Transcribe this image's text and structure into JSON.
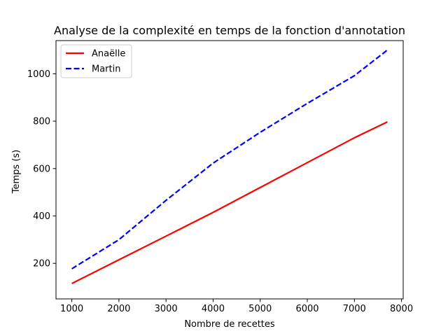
{
  "chart_data": {
    "type": "line",
    "title": "Analyse de la complexité en temps de la fonction d'annotation",
    "xlabel": "Nombre de recettes",
    "ylabel": "Temps (s)",
    "xlim": [
      664,
      8036
    ],
    "ylim": [
      50,
      1140
    ],
    "xticks": [
      1000,
      2000,
      3000,
      4000,
      5000,
      6000,
      7000,
      8000
    ],
    "yticks": [
      200,
      400,
      600,
      800,
      1000
    ],
    "grid": false,
    "legend_position": "top-left",
    "series": [
      {
        "name": "Anaëlle",
        "color": "#ff0000",
        "style": "solid",
        "x": [
          1000,
          2000,
          3000,
          4000,
          5000,
          6000,
          7000,
          7700
        ],
        "y": [
          115,
          215,
          315,
          415,
          520,
          625,
          730,
          797
        ]
      },
      {
        "name": "Martin",
        "color": "#0000ff",
        "style": "dashed",
        "x": [
          1000,
          2000,
          3000,
          4000,
          5000,
          6000,
          7000,
          7700
        ],
        "y": [
          177,
          300,
          466,
          623,
          753,
          875,
          992,
          1100
        ]
      }
    ]
  }
}
